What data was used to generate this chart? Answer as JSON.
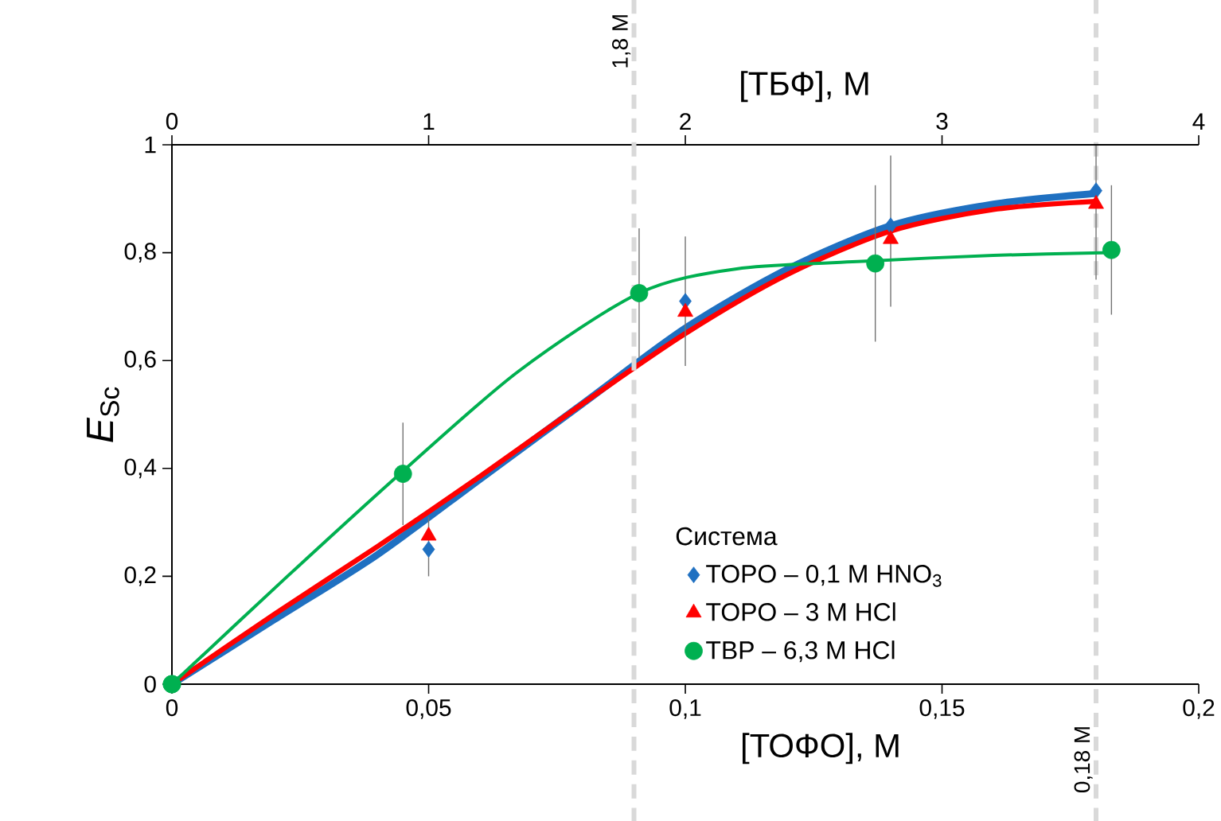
{
  "chart_data": {
    "type": "scatter",
    "xlabel": "[ТОФО], М",
    "x2label": "[ТБФ], М",
    "ylabel": "*E*$_{Sc}$",
    "legend_title": "Система",
    "legend": "bottom right",
    "xlim": [
      0,
      0.2
    ],
    "xticks": [
      0,
      {
        "value": 0.05,
        "label": "0,05"
      },
      {
        "value": 0.1,
        "label": "0,1"
      },
      {
        "value": 0.15,
        "label": "0,15"
      },
      {
        "value": 0.2,
        "label": "0,2"
      }
    ],
    "x2lim": [
      0,
      4
    ],
    "x2ticks": [
      0,
      1,
      2,
      3,
      4
    ],
    "ylim": [
      0,
      1
    ],
    "yticks": [
      0,
      {
        "value": 0.2,
        "label": "0,2"
      },
      {
        "value": 0.4,
        "label": "0,4"
      },
      {
        "value": 0.6,
        "label": "0,6"
      },
      {
        "value": 0.8,
        "label": "0,8"
      },
      1
    ],
    "ref_lines": [
      {
        "axis": "x",
        "value": 0.18,
        "label": "0,18 М",
        "color": "#d9d9d9",
        "line_style": "dashed"
      },
      {
        "axis": "x2",
        "value": 1.8,
        "label": "1,8 М",
        "color": "#d9d9d9",
        "line_style": "dashed"
      }
    ],
    "series": [
      {
        "name": "TOPO – 0,1 M HNO$_{3}$",
        "marker": "diamond",
        "color": "#1f70c1",
        "x": [
          0.05,
          0.1,
          0.14,
          0.18
        ],
        "values": [
          0.25,
          0.71,
          0.85,
          0.915
        ],
        "errors": [
          [
            0.2,
            0.31
          ],
          [
            0.59,
            0.83
          ],
          [
            0.7,
            0.98
          ],
          [
            0.75,
            1.0
          ]
        ]
      },
      {
        "name": "TOPO – 3 M HCl",
        "marker": "triangle",
        "color": "#ff0000",
        "x": [
          0.05,
          0.1,
          0.14,
          0.18
        ],
        "values": [
          0.275,
          0.69,
          0.825,
          0.89
        ]
      },
      {
        "name": "TBP   – 6,3 M HCl",
        "marker": "circle",
        "color": "#00b050",
        "axis": "x2",
        "x": [
          0,
          0.9,
          1.82,
          2.74,
          3.66
        ],
        "values": [
          0,
          0.39,
          0.725,
          0.78,
          0.805
        ],
        "errors": [
          null,
          0.095,
          0.12,
          0.145,
          0.12
        ]
      },
      {
        "type": "line",
        "color": "#1f70c1",
        "x": [
          0,
          0.02,
          0.04,
          0.06,
          0.08,
          0.1,
          0.12,
          0.14,
          0.16,
          0.18
        ],
        "values": [
          0,
          0.12,
          0.24,
          0.38,
          0.52,
          0.66,
          0.77,
          0.85,
          0.89,
          0.91
        ]
      },
      {
        "type": "line",
        "color": "#ff0000",
        "x": [
          0,
          0.02,
          0.04,
          0.06,
          0.08,
          0.1,
          0.12,
          0.14,
          0.16,
          0.18
        ],
        "values": [
          0,
          0.13,
          0.255,
          0.385,
          0.52,
          0.65,
          0.76,
          0.84,
          0.88,
          0.895
        ]
      },
      {
        "type": "line",
        "color": "#00b050",
        "axis": "x2",
        "x": [
          0,
          0.45,
          0.9,
          1.35,
          1.82,
          2.2,
          2.74,
          3.2,
          3.66
        ],
        "values": [
          0,
          0.2,
          0.395,
          0.58,
          0.725,
          0.77,
          0.785,
          0.795,
          0.8
        ]
      }
    ]
  }
}
